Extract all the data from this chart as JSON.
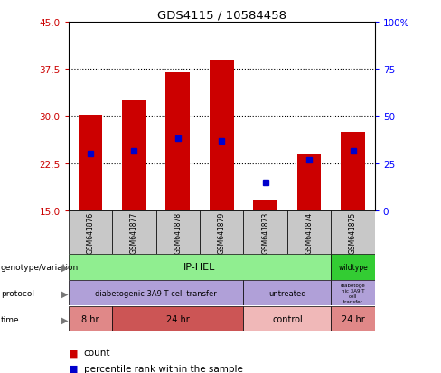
{
  "title": "GDS4115 / 10584458",
  "samples": [
    "GSM641876",
    "GSM641877",
    "GSM641878",
    "GSM641879",
    "GSM641873",
    "GSM641874",
    "GSM641875"
  ],
  "bar_heights": [
    30.2,
    32.5,
    37.0,
    39.0,
    16.5,
    24.0,
    27.5
  ],
  "bar_base": 15.0,
  "blue_dots": [
    24.0,
    24.5,
    26.5,
    26.0,
    19.5,
    23.0,
    24.5
  ],
  "bar_color": "#cc0000",
  "dot_color": "#0000cc",
  "ylim_left": [
    15,
    45
  ],
  "ylim_right": [
    0,
    100
  ],
  "yticks_left": [
    15,
    22.5,
    30,
    37.5,
    45
  ],
  "yticks_right": [
    0,
    25,
    50,
    75,
    100
  ],
  "hlines": [
    22.5,
    30.0,
    37.5
  ],
  "legend_count_color": "#cc0000",
  "legend_dot_color": "#0000cc",
  "bg_color": "#ffffff",
  "bar_width": 0.55,
  "genotype_colors": {
    "ip_hel": "#90ee90",
    "wildtype": "#33cc33"
  },
  "protocol_color": "#b0a0d8",
  "time_colors": {
    "8hr": "#e08888",
    "24hr": "#cc5555",
    "control": "#f0b8b8"
  },
  "sample_box_color": "#c8c8c8"
}
